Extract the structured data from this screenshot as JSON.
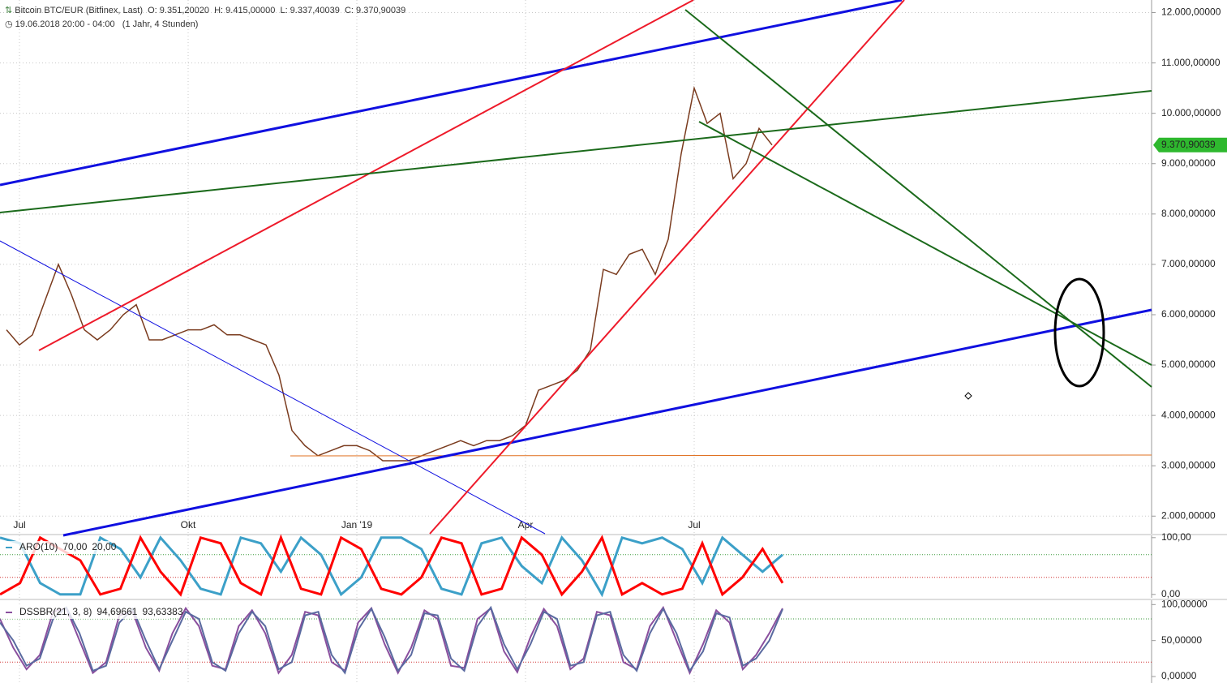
{
  "chart_data": [
    {
      "type": "line",
      "title": "Bitcoin BTC/EUR (Bitfinex, Last)",
      "ohlc": [
        "O: 9.351,20020",
        "H: 9.415,00000",
        "L: 9.337,40039",
        "C: 9.370,90039"
      ],
      "subtitle": "19.06.2018 20:00 - 04:00",
      "period": "(1 Jahr, 4 Stunden)",
      "categories": [
        null,
        "Jul",
        null,
        null,
        null,
        null,
        null,
        null,
        null,
        null,
        null,
        null,
        null,
        null,
        "Okt",
        null,
        null,
        null,
        null,
        null,
        null,
        null,
        null,
        null,
        null,
        null,
        null,
        "Jan '19",
        null,
        null,
        null,
        null,
        null,
        null,
        null,
        null,
        null,
        null,
        null,
        null,
        "Apr",
        null,
        null,
        null,
        null,
        null,
        null,
        null,
        null,
        null,
        null,
        null,
        null,
        "Jul",
        null,
        null,
        null,
        null,
        null,
        null
      ],
      "values": [
        5700,
        5400,
        5600,
        6300,
        7000,
        6400,
        5700,
        5500,
        5700,
        6000,
        6200,
        5500,
        5500,
        5600,
        5700,
        5700,
        5800,
        5600,
        5600,
        5500,
        5400,
        4800,
        3700,
        3400,
        3200,
        3300,
        3400,
        3400,
        3300,
        3100,
        3100,
        3100,
        3200,
        3300,
        3400,
        3500,
        3400,
        3500,
        3500,
        3600,
        3800,
        4500,
        4600,
        4700,
        4900,
        5300,
        6900,
        6800,
        7200,
        7300,
        6800,
        7500,
        9200,
        10500,
        9800,
        10000,
        8700,
        9000,
        9700,
        9370.90039
      ],
      "color": "#7a3b1e",
      "last_value": {
        "value": 9370.90039,
        "label": "9.370,90039"
      },
      "ylim": [
        1650,
        12250
      ],
      "yticks": [
        {
          "value": 2000,
          "label": "2.000,00000"
        },
        {
          "value": 3000,
          "label": "3.000,00000"
        },
        {
          "value": 4000,
          "label": "4.000,00000"
        },
        {
          "value": 5000,
          "label": "5.000,00000"
        },
        {
          "value": 6000,
          "label": "6.000,00000"
        },
        {
          "value": 7000,
          "label": "7.000,00000"
        },
        {
          "value": 8000,
          "label": "8.000,00000"
        },
        {
          "value": 9000,
          "label": "9.000,00000"
        },
        {
          "value": 10000,
          "label": "10.000,00000"
        },
        {
          "value": 11000,
          "label": "11.000,00000"
        },
        {
          "value": 12000,
          "label": "12.000,00000"
        }
      ],
      "grid": true
    },
    {
      "type": "line",
      "title": "ARO(10)",
      "readouts": [
        "70,00",
        "20,00"
      ],
      "series": [
        {
          "color": "#3ca0c8",
          "values": [
            100,
            90,
            20,
            0,
            0,
            100,
            80,
            30,
            100,
            60,
            10,
            0,
            100,
            90,
            40,
            100,
            70,
            0,
            30,
            100,
            100,
            80,
            10,
            0,
            90,
            100,
            50,
            20,
            100,
            60,
            0,
            100,
            90,
            100,
            80,
            20,
            100,
            70,
            40,
            70
          ]
        },
        {
          "color": "#ff0000",
          "values": [
            0,
            20,
            100,
            80,
            60,
            0,
            10,
            100,
            40,
            0,
            100,
            90,
            20,
            0,
            100,
            10,
            0,
            100,
            80,
            10,
            0,
            30,
            100,
            90,
            0,
            10,
            100,
            70,
            0,
            40,
            100,
            0,
            20,
            0,
            10,
            90,
            0,
            30,
            80,
            20
          ]
        }
      ],
      "reference_lines": [
        70,
        30
      ],
      "ylim": [
        -6,
        104
      ],
      "yticks": [
        {
          "value": 0,
          "label": "0,00"
        },
        {
          "value": 100,
          "label": "100,00"
        }
      ]
    },
    {
      "type": "line",
      "title": "DSSBR(21, 3, 8)",
      "readouts": [
        "94,69661",
        "93,63383"
      ],
      "series": [
        {
          "color": "#8a4f9e",
          "values": [
            80,
            40,
            10,
            30,
            90,
            95,
            50,
            5,
            20,
            85,
            90,
            40,
            8,
            60,
            95,
            70,
            15,
            10,
            70,
            92,
            60,
            5,
            30,
            90,
            85,
            20,
            8,
            75,
            95,
            45,
            5,
            40,
            92,
            80,
            15,
            12,
            80,
            95,
            35,
            6,
            55,
            94,
            70,
            10,
            25,
            90,
            85,
            20,
            10,
            70,
            96,
            50,
            5,
            45,
            92,
            75,
            10,
            30,
            60,
            94.69661
          ]
        },
        {
          "color": "#5a6aa0",
          "values": [
            75,
            50,
            15,
            25,
            80,
            96,
            60,
            8,
            15,
            75,
            94,
            50,
            10,
            50,
            90,
            80,
            20,
            8,
            60,
            90,
            70,
            10,
            20,
            85,
            90,
            30,
            5,
            65,
            94,
            55,
            8,
            30,
            88,
            85,
            25,
            8,
            70,
            96,
            45,
            10,
            45,
            90,
            80,
            15,
            20,
            85,
            90,
            30,
            8,
            60,
            94,
            60,
            8,
            35,
            88,
            82,
            15,
            25,
            50,
            93.63383
          ]
        }
      ],
      "reference_lines": [
        80,
        20
      ],
      "ylim": [
        -9,
        106
      ],
      "yticks": [
        {
          "value": 0,
          "label": "0,00000"
        },
        {
          "value": 50,
          "label": "50,00000"
        },
        {
          "value": 100,
          "label": "100,00000"
        }
      ]
    }
  ]
}
